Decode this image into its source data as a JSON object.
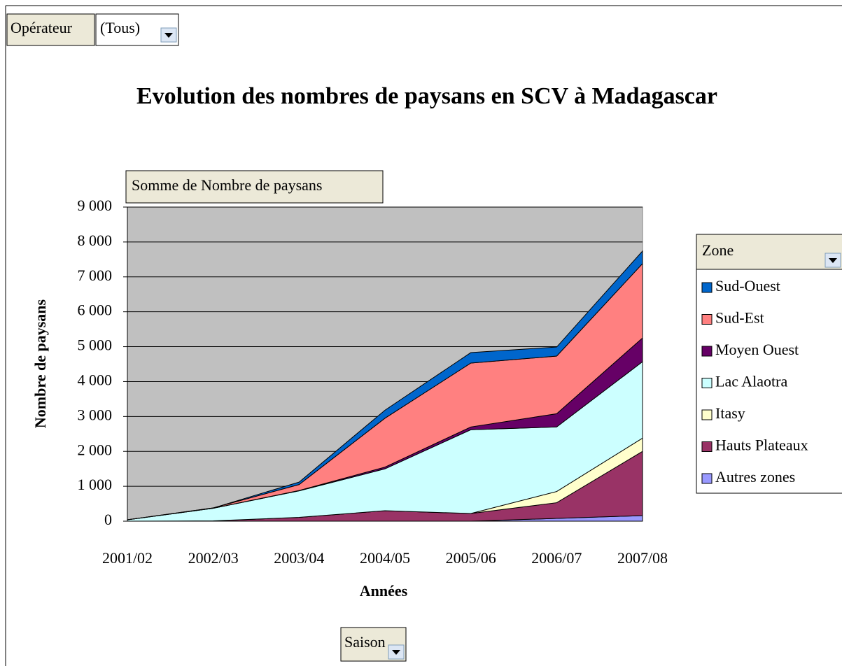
{
  "chart_data": {
    "type": "stacked_area",
    "title": "Evolution des nombres de paysans en SCV à Madagascar",
    "filter_field": "Opérateur",
    "filter_value": "(Tous)",
    "data_field": "Somme de Nombre de paysans",
    "legend_field": "Zone",
    "category_field": "Saison",
    "x_label": "Années",
    "y_label": "Nombre de paysans",
    "categories": [
      "2001/02",
      "2002/03",
      "2003/04",
      "2004/05",
      "2005/06",
      "2006/07",
      "2007/08"
    ],
    "series": [
      {
        "name": "Autres zones",
        "color": "#9999ff",
        "values": [
          0,
          0,
          0,
          0,
          0,
          80,
          160
        ]
      },
      {
        "name": "Hauts Plateaux",
        "color": "#993366",
        "values": [
          0,
          10,
          110,
          300,
          220,
          450,
          1840
        ]
      },
      {
        "name": "Itasy",
        "color": "#ffffcc",
        "values": [
          0,
          0,
          0,
          0,
          0,
          320,
          380
        ]
      },
      {
        "name": "Lac Alaotra",
        "color": "#ccffff",
        "values": [
          40,
          360,
          760,
          1200,
          2400,
          1850,
          2190
        ]
      },
      {
        "name": "Moyen Ouest",
        "color": "#660066",
        "values": [
          0,
          0,
          10,
          50,
          80,
          380,
          680
        ]
      },
      {
        "name": "Sud-Est",
        "color": "#ff8080",
        "values": [
          0,
          10,
          170,
          1400,
          1830,
          1650,
          2130
        ]
      },
      {
        "name": "Sud-Ouest",
        "color": "#0066cc",
        "values": [
          0,
          0,
          70,
          230,
          300,
          260,
          360
        ]
      }
    ],
    "ylim": [
      0,
      9000
    ],
    "yticks": [
      0,
      {
        "value": 1000,
        "label": "1 000"
      },
      {
        "value": 2000,
        "label": "2 000"
      },
      {
        "value": 3000,
        "label": "3 000"
      },
      {
        "value": 4000,
        "label": "4 000"
      },
      {
        "value": 5000,
        "label": "5 000"
      },
      {
        "value": 6000,
        "label": "6 000"
      },
      {
        "value": 7000,
        "label": "7 000"
      },
      {
        "value": 8000,
        "label": "8 000"
      },
      {
        "value": 9000,
        "label": "9 000"
      }
    ],
    "grid": true,
    "legend": "right",
    "plot_background": "#c0c0c0"
  }
}
